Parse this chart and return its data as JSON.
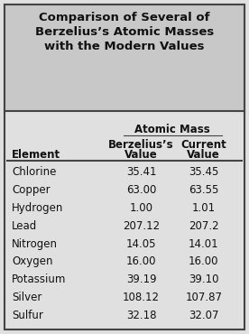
{
  "title_line1": "Comparison of Several of",
  "title_line2": "Berzelius’s Atomic Masses",
  "title_line3": "with the Modern Values",
  "col_atomic_mass": "Atomic Mass",
  "col1_header_line1": "Berzelius’s",
  "col1_header_line2": "Value",
  "col2_header_line1": "Current",
  "col2_header_line2": "Value",
  "col0_header": "Element",
  "elements": [
    "Chlorine",
    "Copper",
    "Hydrogen",
    "Lead",
    "Nitrogen",
    "Oxygen",
    "Potassium",
    "Silver",
    "Sulfur"
  ],
  "berzelius_values": [
    "35.41",
    "63.00",
    "1.00",
    "207.12",
    "14.05",
    "16.00",
    "39.19",
    "108.12",
    "32.18"
  ],
  "current_values": [
    "35.45",
    "63.55",
    "1.01",
    "207.2",
    "14.01",
    "16.00",
    "39.10",
    "107.87",
    "32.07"
  ],
  "bg_color": "#e0e0e0",
  "title_bg_color": "#c8c8c8",
  "border_color": "#444444",
  "text_color": "#111111",
  "title_fontsize": 9.5,
  "header_fontsize": 8.5,
  "data_fontsize": 8.5,
  "fig_width": 2.76,
  "fig_height": 3.7,
  "dpi": 100
}
